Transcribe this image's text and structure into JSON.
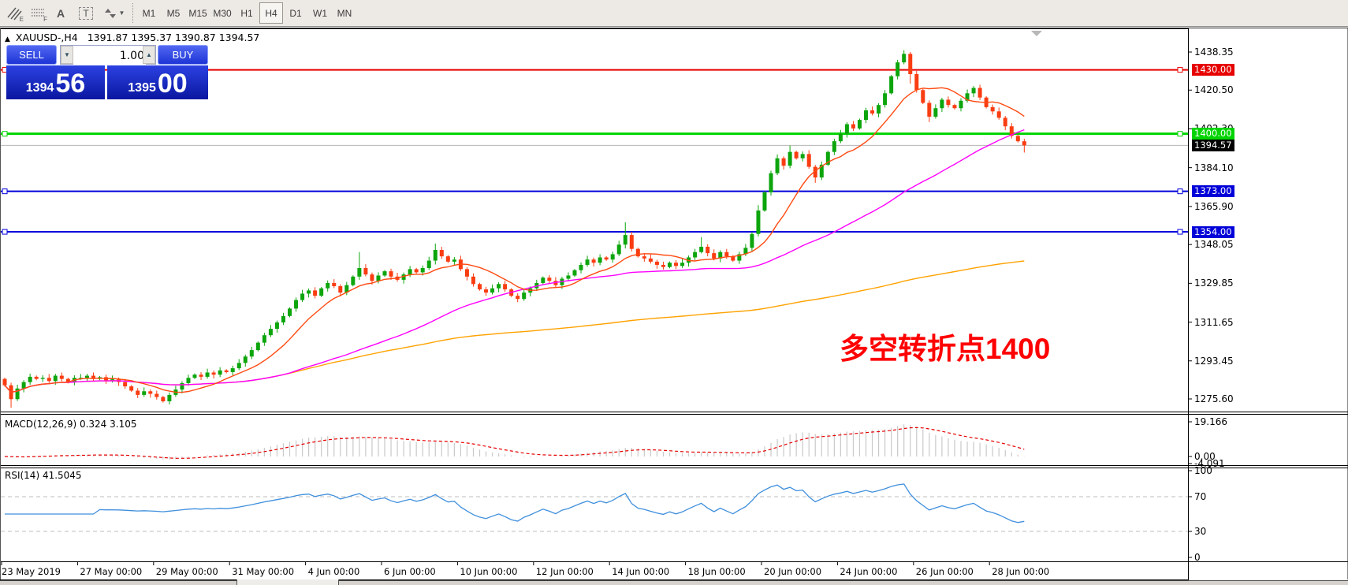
{
  "toolbar": {
    "icons": [
      {
        "name": "equidistant-channel-icon",
        "label": "E"
      },
      {
        "name": "fibonacci-grid-icon",
        "label": "F"
      },
      {
        "name": "text-label-icon",
        "label": "A"
      },
      {
        "name": "text-box-icon",
        "label": "T"
      },
      {
        "name": "cycle-arrows-icon",
        "label": ""
      }
    ],
    "timeframes": [
      "M1",
      "M5",
      "M15",
      "M30",
      "H1",
      "H4",
      "D1",
      "W1",
      "MN"
    ],
    "active_timeframe": "H4"
  },
  "header": {
    "symbol": "XAUUSD-,H4",
    "ohlc": "1391.87 1395.37 1390.87 1394.57"
  },
  "trade_panel": {
    "sell_label": "SELL",
    "buy_label": "BUY",
    "volume": "1.00",
    "sell_price_small": "1394",
    "sell_price_big": "56",
    "buy_price_small": "1395",
    "buy_price_big": "00"
  },
  "annotation": {
    "text": "多空转折点1400",
    "color": "#ff0000"
  },
  "price_axis": {
    "ticks": [
      {
        "label": "1438.35",
        "price": 1438.35
      },
      {
        "label": "1420.50",
        "price": 1420.5
      },
      {
        "label": "1402.30",
        "price": 1402.3
      },
      {
        "label": "1384.10",
        "price": 1384.1
      },
      {
        "label": "1365.90",
        "price": 1365.9
      },
      {
        "label": "1348.05",
        "price": 1348.05
      },
      {
        "label": "1329.85",
        "price": 1329.85
      },
      {
        "label": "1311.65",
        "price": 1311.65
      },
      {
        "label": "1293.45",
        "price": 1293.45
      },
      {
        "label": "1275.60",
        "price": 1275.6
      }
    ],
    "current_chip": {
      "label": "1394.57",
      "price": 1394.57,
      "bg": "#000000"
    }
  },
  "macd_panel": {
    "label": "MACD(12,26,9) 0.324 3.105",
    "axis": [
      {
        "label": "19.166",
        "value": 19.166
      },
      {
        "label": "0.00",
        "value": 0
      },
      {
        "label": "-4.091",
        "value": -4.091
      }
    ]
  },
  "rsi_panel": {
    "label": "RSI(14) 41.5045",
    "axis": [
      {
        "label": "100",
        "value": 100
      },
      {
        "label": "70",
        "value": 70
      },
      {
        "label": "30",
        "value": 30
      },
      {
        "label": "0",
        "value": 0
      }
    ],
    "dashed_levels": [
      70,
      30
    ]
  },
  "time_axis": {
    "labels": [
      {
        "text": "23 May 2019",
        "day": 0
      },
      {
        "text": "27 May 00:00",
        "day": 2
      },
      {
        "text": "29 May 00:00",
        "day": 4
      },
      {
        "text": "31 May 00:00",
        "day": 6
      },
      {
        "text": "4 Jun 00:00",
        "day": 8
      },
      {
        "text": "6 Jun 00:00",
        "day": 10
      },
      {
        "text": "10 Jun 00:00",
        "day": 12
      },
      {
        "text": "12 Jun 00:00",
        "day": 14
      },
      {
        "text": "14 Jun 00:00",
        "day": 16
      },
      {
        "text": "18 Jun 00:00",
        "day": 18
      },
      {
        "text": "20 Jun 00:00",
        "day": 20
      },
      {
        "text": "24 Jun 00:00",
        "day": 22
      },
      {
        "text": "26 Jun 00:00",
        "day": 24
      },
      {
        "text": "28 Jun 00:00",
        "day": 26
      }
    ]
  },
  "chart_data": {
    "type": "candlestick",
    "symbol": "XAUUSD-",
    "timeframe": "H4",
    "candles_per_day": 6,
    "dates": [
      "2019-05-23",
      "2019-05-24",
      "2019-05-27",
      "2019-05-28",
      "2019-05-29",
      "2019-05-30",
      "2019-05-31",
      "2019-06-03",
      "2019-06-04",
      "2019-06-05",
      "2019-06-06",
      "2019-06-07",
      "2019-06-10",
      "2019-06-11",
      "2019-06-12",
      "2019-06-13",
      "2019-06-14",
      "2019-06-17",
      "2019-06-18",
      "2019-06-19",
      "2019-06-20",
      "2019-06-21",
      "2019-06-24",
      "2019-06-25",
      "2019-06-26",
      "2019-06-27",
      "2019-06-28"
    ],
    "open_first": 1285.0,
    "closes": [
      1282.0,
      1275.5,
      1280.5,
      1283.5,
      1286.0,
      1285.0,
      1285.5,
      1284.0,
      1286.5,
      1285.0,
      1283.5,
      1285.5,
      1285.5,
      1286.5,
      1285.0,
      1285.8,
      1284.2,
      1284.8,
      1283.5,
      1281.5,
      1279.5,
      1277.5,
      1279.2,
      1278.0,
      1276.5,
      1274.5,
      1277.5,
      1280.0,
      1283.0,
      1285.5,
      1287.0,
      1286.0,
      1288.0,
      1287.0,
      1289.0,
      1288.2,
      1290.0,
      1292.5,
      1295.5,
      1298.5,
      1302.0,
      1305.5,
      1308.5,
      1311.5,
      1314.5,
      1318.0,
      1322.0,
      1325.0,
      1326.5,
      1324.0,
      1327.5,
      1330.0,
      1328.5,
      1325.5,
      1329.0,
      1333.0,
      1337.0,
      1334.0,
      1331.0,
      1333.5,
      1335.5,
      1333.0,
      1331.5,
      1334.0,
      1336.5,
      1335.0,
      1337.0,
      1340.5,
      1345.5,
      1342.5,
      1340.0,
      1341.0,
      1336.5,
      1333.0,
      1329.5,
      1327.0,
      1325.5,
      1327.5,
      1329.5,
      1327.0,
      1324.0,
      1322.5,
      1325.5,
      1327.5,
      1330.0,
      1332.5,
      1331.0,
      1329.0,
      1332.0,
      1333.5,
      1336.0,
      1338.5,
      1341.0,
      1339.5,
      1342.0,
      1341.0,
      1343.5,
      1348.0,
      1352.5,
      1346.0,
      1342.5,
      1341.5,
      1340.0,
      1338.5,
      1337.5,
      1339.5,
      1338.0,
      1339.5,
      1342.0,
      1344.5,
      1347.0,
      1344.0,
      1341.5,
      1344.5,
      1342.5,
      1340.5,
      1343.5,
      1346.5,
      1353.0,
      1364.0,
      1372.5,
      1381.5,
      1388.5,
      1385.0,
      1391.5,
      1388.5,
      1390.5,
      1384.5,
      1379.5,
      1385.5,
      1391.5,
      1396.5,
      1400.0,
      1404.5,
      1402.5,
      1406.5,
      1411.0,
      1409.5,
      1413.5,
      1419.0,
      1427.0,
      1433.5,
      1437.5,
      1428.0,
      1420.5,
      1414.5,
      1408.0,
      1412.0,
      1416.0,
      1413.5,
      1412.0,
      1415.5,
      1419.0,
      1421.5,
      1417.0,
      1412.5,
      1410.5,
      1407.5,
      1403.5,
      1399.0,
      1396.5,
      1394.57
    ],
    "wick_spikes": {
      "1": [
        null,
        1271.5
      ],
      "56": [
        1344.5,
        null
      ],
      "68": [
        1348.5,
        null
      ],
      "98": [
        1358.5,
        null
      ],
      "110": [
        1351.5,
        null
      ],
      "119": [
        1366.5,
        null
      ],
      "124": [
        1394.5,
        null
      ],
      "128": [
        null,
        1377.0
      ],
      "142": [
        1439.2,
        null
      ],
      "143": [
        null,
        1423.5
      ],
      "146": [
        null,
        1405.5
      ],
      "161": [
        null,
        1391.2
      ]
    },
    "current_price": 1394.57,
    "levels": [
      {
        "price": 1430.0,
        "label": "1430.00",
        "color": "#e60000",
        "width": 2
      },
      {
        "price": 1400.0,
        "label": "1400.00",
        "color": "#00d400",
        "width": 3
      },
      {
        "price": 1373.0,
        "label": "1373.00",
        "color": "#0000d9",
        "width": 2
      },
      {
        "price": 1354.0,
        "label": "1354.00",
        "color": "#0000d9",
        "width": 2
      }
    ],
    "moving_averages": [
      {
        "name": "ma-fast",
        "period": 10,
        "color": "#ff4a11"
      },
      {
        "name": "ma-mid",
        "period": 45,
        "color": "#ff00ff"
      },
      {
        "name": "ma-slow",
        "period": 170,
        "color": "#ffa200"
      }
    ],
    "macd": {
      "fast": 12,
      "slow": 26,
      "signal": 9,
      "last_main": 0.324,
      "last_signal": 3.105,
      "hist_color": "#c9c9c9",
      "signal_color": "#e60000"
    },
    "rsi": {
      "period": 14,
      "last": 41.5045,
      "color": "#3f8fdd"
    },
    "colors": {
      "up": "#0ca50c",
      "down": "#fa3c11",
      "current_line": "#b4b4b4"
    }
  }
}
